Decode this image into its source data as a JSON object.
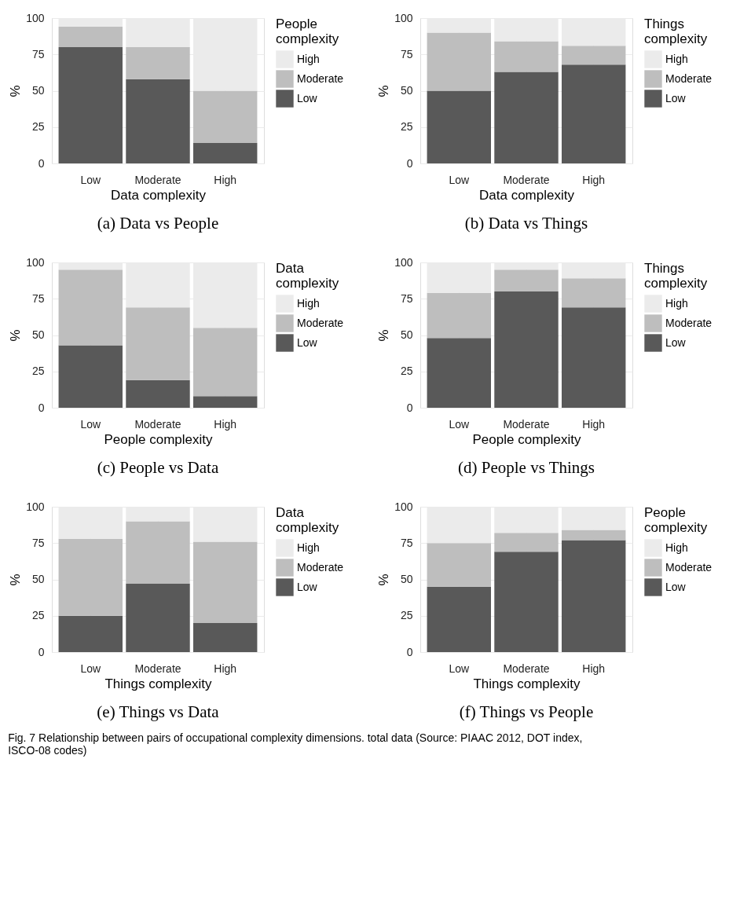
{
  "chart_data": [
    {
      "type": "bar",
      "stacked": true,
      "title": "(a) Data vs People",
      "xlabel": "Data complexity",
      "ylabel": "%",
      "legend_title": "People complexity",
      "categories": [
        "Low",
        "Moderate",
        "High"
      ],
      "ylim": [
        0,
        100
      ],
      "yticks": [
        0,
        25,
        50,
        75,
        100
      ],
      "grid": true,
      "legend": "right",
      "series": [
        {
          "name": "Low",
          "color": "#595959",
          "values": [
            80,
            58,
            14
          ]
        },
        {
          "name": "Moderate",
          "color": "#bebebe",
          "values": [
            14,
            22,
            36
          ]
        },
        {
          "name": "High",
          "color": "#ebebeb",
          "values": [
            6,
            20,
            50
          ]
        }
      ]
    },
    {
      "type": "bar",
      "stacked": true,
      "title": "(b) Data vs Things",
      "xlabel": "Data complexity",
      "ylabel": "%",
      "legend_title": "Things complexity",
      "categories": [
        "Low",
        "Moderate",
        "High"
      ],
      "ylim": [
        0,
        100
      ],
      "yticks": [
        0,
        25,
        50,
        75,
        100
      ],
      "grid": true,
      "legend": "right",
      "series": [
        {
          "name": "Low",
          "color": "#595959",
          "values": [
            50,
            63,
            68
          ]
        },
        {
          "name": "Moderate",
          "color": "#bebebe",
          "values": [
            40,
            21,
            13
          ]
        },
        {
          "name": "High",
          "color": "#ebebeb",
          "values": [
            10,
            16,
            19
          ]
        }
      ]
    },
    {
      "type": "bar",
      "stacked": true,
      "title": "(c) People vs Data",
      "xlabel": "People complexity",
      "ylabel": "%",
      "legend_title": "Data complexity",
      "categories": [
        "Low",
        "Moderate",
        "High"
      ],
      "ylim": [
        0,
        100
      ],
      "yticks": [
        0,
        25,
        50,
        75,
        100
      ],
      "grid": true,
      "legend": "right",
      "series": [
        {
          "name": "Low",
          "color": "#595959",
          "values": [
            43,
            19,
            8
          ]
        },
        {
          "name": "Moderate",
          "color": "#bebebe",
          "values": [
            52,
            50,
            47
          ]
        },
        {
          "name": "High",
          "color": "#ebebeb",
          "values": [
            5,
            31,
            45
          ]
        }
      ]
    },
    {
      "type": "bar",
      "stacked": true,
      "title": "(d) People vs Things",
      "xlabel": "People complexity",
      "ylabel": "%",
      "legend_title": "Things complexity",
      "categories": [
        "Low",
        "Moderate",
        "High"
      ],
      "ylim": [
        0,
        100
      ],
      "yticks": [
        0,
        25,
        50,
        75,
        100
      ],
      "grid": true,
      "legend": "right",
      "series": [
        {
          "name": "Low",
          "color": "#595959",
          "values": [
            48,
            80,
            69
          ]
        },
        {
          "name": "Moderate",
          "color": "#bebebe",
          "values": [
            31,
            15,
            20
          ]
        },
        {
          "name": "High",
          "color": "#ebebeb",
          "values": [
            21,
            5,
            11
          ]
        }
      ]
    },
    {
      "type": "bar",
      "stacked": true,
      "title": "(e) Things vs Data",
      "xlabel": "Things complexity",
      "ylabel": "%",
      "legend_title": "Data complexity",
      "categories": [
        "Low",
        "Moderate",
        "High"
      ],
      "ylim": [
        0,
        100
      ],
      "yticks": [
        0,
        25,
        50,
        75,
        100
      ],
      "grid": true,
      "legend": "right",
      "series": [
        {
          "name": "Low",
          "color": "#595959",
          "values": [
            25,
            47,
            20
          ]
        },
        {
          "name": "Moderate",
          "color": "#bebebe",
          "values": [
            53,
            43,
            56
          ]
        },
        {
          "name": "High",
          "color": "#ebebeb",
          "values": [
            22,
            10,
            24
          ]
        }
      ]
    },
    {
      "type": "bar",
      "stacked": true,
      "title": "(f) Things vs People",
      "xlabel": "Things complexity",
      "ylabel": "%",
      "legend_title": "People complexity",
      "categories": [
        "Low",
        "Moderate",
        "High"
      ],
      "ylim": [
        0,
        100
      ],
      "yticks": [
        0,
        25,
        50,
        75,
        100
      ],
      "grid": true,
      "legend": "right",
      "annotations": [
        "Fig. 7 Relationship between pairs of occupational complexity dimensions. total data (Source: PIAAC 2012, DOT index, ISCO-08 codes)"
      ],
      "series": [
        {
          "name": "Low",
          "color": "#595959",
          "values": [
            45,
            69,
            77
          ]
        },
        {
          "name": "Moderate",
          "color": "#bebebe",
          "values": [
            30,
            13,
            7
          ]
        },
        {
          "name": "High",
          "color": "#ebebeb",
          "values": [
            25,
            18,
            16
          ]
        }
      ]
    }
  ]
}
